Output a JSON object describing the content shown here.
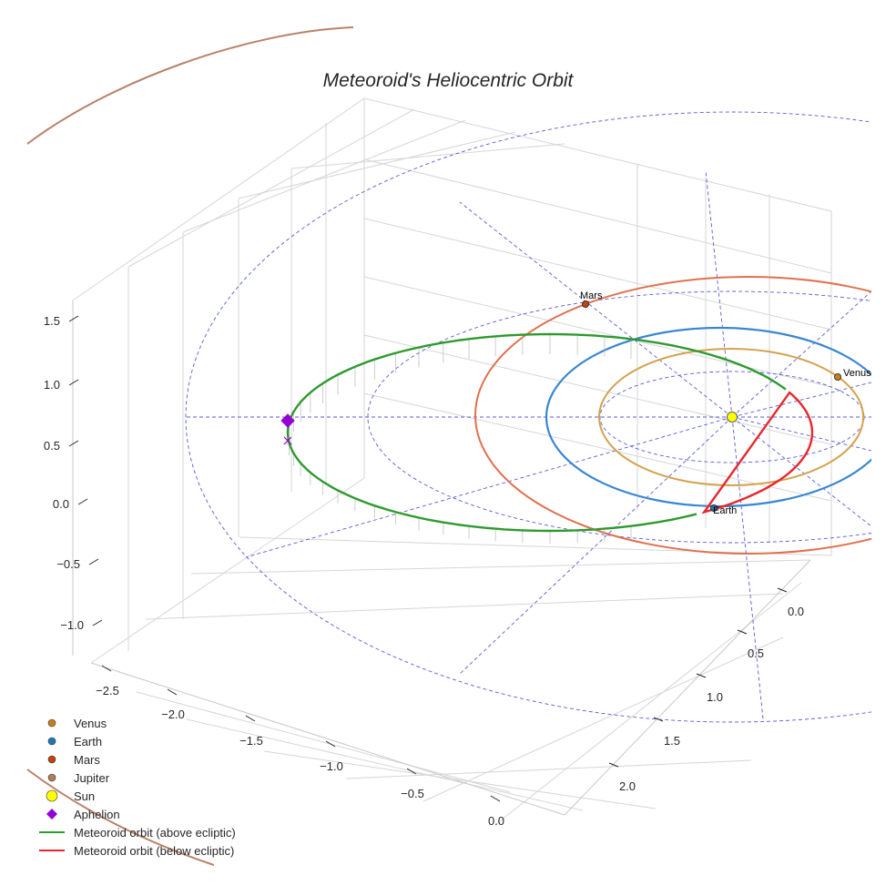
{
  "chart_data": {
    "type": "line",
    "projection": "3d",
    "title": "Meteoroid's Heliocentric Orbit",
    "xlabel": "",
    "ylabel": "",
    "zlabel": "",
    "axes": {
      "x": {
        "ticks": [
          -2.5,
          -2.0,
          -1.5,
          -1.0,
          -0.5,
          0.0
        ],
        "tick_labels": [
          "−2.5",
          "−2.0",
          "−1.5",
          "−1.0",
          "−0.5",
          "0.0"
        ]
      },
      "y": {
        "ticks": [
          0.0,
          0.5,
          1.0,
          1.5,
          2.0
        ],
        "tick_labels": [
          "0.0",
          "0.5",
          "1.0",
          "1.5",
          "2.0"
        ]
      },
      "z": {
        "ticks": [
          1.5,
          1.0,
          0.5,
          0.0,
          -0.5,
          -1.0
        ],
        "tick_labels": [
          "1.5",
          "1.0",
          "0.5",
          "0.0",
          "−0.5",
          "−1.0"
        ]
      }
    },
    "bodies": [
      {
        "name": "Venus",
        "label": "Venus",
        "color": "#c87f1e",
        "orbit_color": "#d4a24e",
        "orbit_radius_au": 0.72
      },
      {
        "name": "Earth",
        "label": "Earth",
        "color": "#1f77b4",
        "orbit_color": "#3a86d0",
        "orbit_radius_au": 1.0
      },
      {
        "name": "Mars",
        "label": "Mars",
        "color": "#c1440e",
        "orbit_color": "#e07050",
        "orbit_radius_au": 1.52
      },
      {
        "name": "Jupiter",
        "label": "Jupiter",
        "color": "#b07f5c",
        "orbit_color": "#b9826a",
        "orbit_radius_au": 5.2
      },
      {
        "name": "Sun",
        "label": "Sun",
        "color": "#ffff00",
        "orbit_color": "",
        "orbit_radius_au": 0
      }
    ],
    "meteoroid": {
      "above_color": "#2e9a2e",
      "below_color": "#e8262b",
      "aphelion_color": "#9400d3",
      "perihelion_au": 0.22,
      "aphelion_au": 2.7
    },
    "legend": {
      "location": "lower-left",
      "entries": [
        {
          "label": "Venus",
          "marker": "circle",
          "color": "#c87f1e"
        },
        {
          "label": "Earth",
          "marker": "circle",
          "color": "#1f77b4"
        },
        {
          "label": "Mars",
          "marker": "circle",
          "color": "#c1440e"
        },
        {
          "label": "Jupiter",
          "marker": "circle",
          "color": "#b07f5c"
        },
        {
          "label": "Sun",
          "marker": "circle-large",
          "color": "#ffff00"
        },
        {
          "label": "Aphelion",
          "marker": "diamond",
          "color": "#9400d3"
        },
        {
          "label": "Meteoroid orbit (above ecliptic)",
          "marker": "line",
          "color": "#2e9a2e"
        },
        {
          "label": "Meteoroid orbit (below ecliptic)",
          "marker": "line",
          "color": "#e8262b"
        }
      ]
    },
    "grid": true
  }
}
